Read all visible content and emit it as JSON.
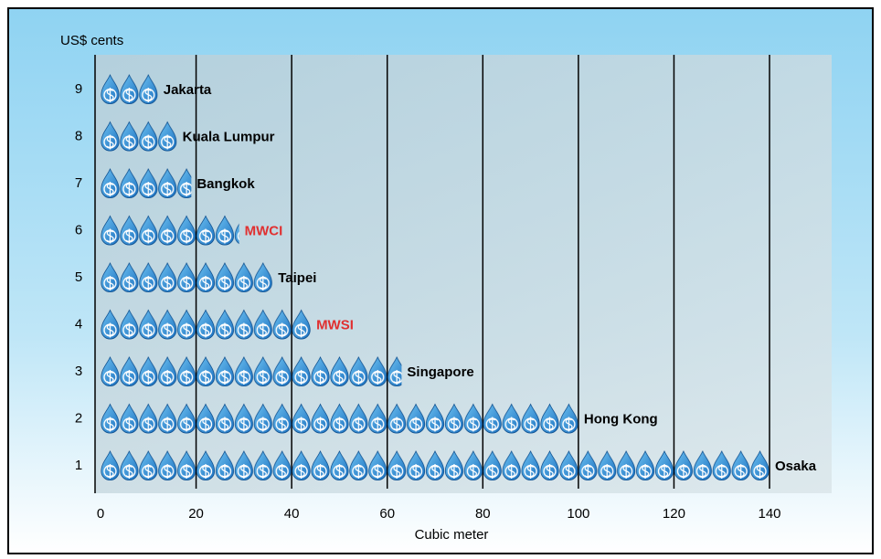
{
  "chart_data": {
    "type": "pictograph",
    "y_axis_label": "US$ cents",
    "x_axis_label": "Cubic meter",
    "categories": [
      "1",
      "2",
      "3",
      "4",
      "5",
      "6",
      "7",
      "8",
      "9"
    ],
    "values": [
      140,
      100,
      63,
      44,
      36,
      29,
      19,
      16,
      12
    ],
    "labels": [
      "Osaka",
      "Hong Kong",
      "Singapore",
      "MWSI",
      "Taipei",
      "MWCI",
      "Bangkok",
      "Kuala Lumpur",
      "Jakarta"
    ],
    "label_colors": [
      "#000000",
      "#000000",
      "#000000",
      "#e03030",
      "#000000",
      "#e03030",
      "#000000",
      "#000000",
      "#000000"
    ],
    "units_per_icon": 4,
    "color": "#2a8ed8",
    "xlim": [
      0,
      153
    ],
    "xticks": [
      0,
      20,
      40,
      60,
      80,
      100,
      120,
      140
    ],
    "grid": true
  }
}
